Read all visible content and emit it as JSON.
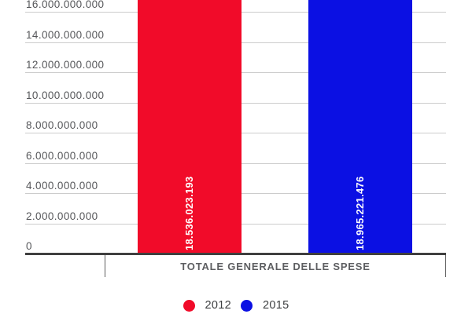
{
  "chart_data": {
    "type": "bar",
    "title": "",
    "categories": [
      "TOTALE GENERALE DELLE SPESE"
    ],
    "series": [
      {
        "name": "2012",
        "color": "#f10b29",
        "values": [
          18536023193
        ],
        "value_labels": [
          "18.536.023.193"
        ]
      },
      {
        "name": "2015",
        "color": "#0b10e3",
        "values": [
          18965221476
        ],
        "value_labels": [
          "18.965.221.476"
        ]
      }
    ],
    "y_axis": {
      "tick_values": [
        0,
        2000000000,
        4000000000,
        6000000000,
        8000000000,
        10000000000,
        12000000000,
        14000000000,
        16000000000
      ],
      "tick_labels": [
        "0",
        "2.000.000.000",
        "4.000.000.000",
        "6.000.000.000",
        "8.000.000.000",
        "10.000.000.000",
        "12.000.000.000",
        "14.000.000.000",
        "16.000.000.000"
      ],
      "grid": true,
      "bars_clipped_at_top": true
    },
    "legend": {
      "position": "bottom",
      "entries": [
        {
          "label": "2012",
          "color": "#f10b29"
        },
        {
          "label": "2015",
          "color": "#0b10e3"
        }
      ]
    },
    "colors": {
      "gridline": "#cccccc",
      "baseline": "#3f3f3f",
      "axis_text": "#56575a",
      "category_text": "#5d5e61",
      "legend_text": "#3e4042",
      "bar_label_text": "#ffffff",
      "background": "#ffffff"
    }
  }
}
